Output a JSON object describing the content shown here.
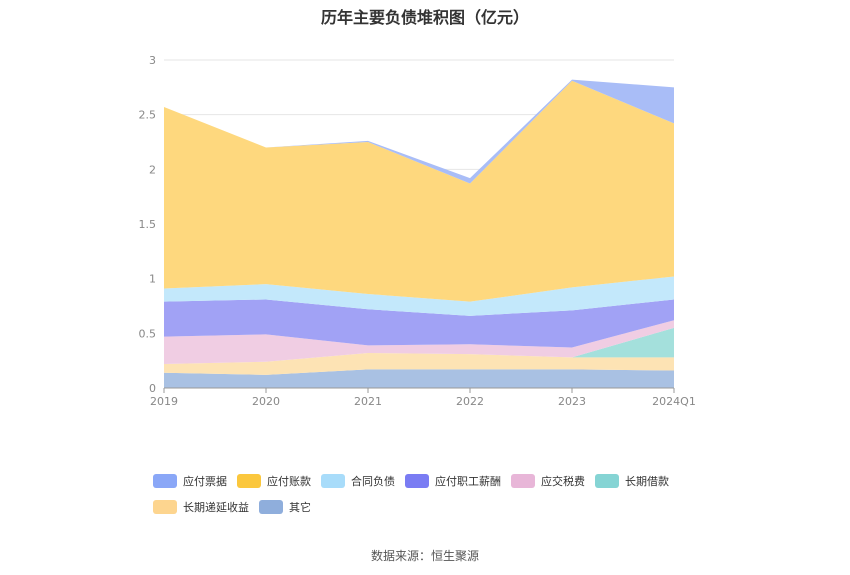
{
  "chart_data": {
    "type": "area",
    "stacked": true,
    "title": "历年主要负债堆积图（亿元）",
    "categories": [
      "2019",
      "2020",
      "2021",
      "2022",
      "2023",
      "2024Q1"
    ],
    "ylim": [
      0,
      3
    ],
    "yticks": [
      "0",
      "0.5",
      "1",
      "1.5",
      "2",
      "2.5",
      "3"
    ],
    "grid": true,
    "legend_position": "bottom",
    "series": [
      {
        "name": "其它",
        "color": "#a9c1e3",
        "values": [
          0.14,
          0.12,
          0.17,
          0.17,
          0.17,
          0.16
        ]
      },
      {
        "name": "长期递延收益",
        "color": "#fde3b4",
        "values": [
          0.08,
          0.12,
          0.15,
          0.14,
          0.11,
          0.12
        ]
      },
      {
        "name": "长期借款",
        "color": "#a4e0dc",
        "values": [
          0,
          0,
          0,
          0,
          0,
          0.27
        ]
      },
      {
        "name": "应交税费",
        "color": "#f0cde3",
        "values": [
          0.25,
          0.25,
          0.07,
          0.09,
          0.09,
          0.07
        ]
      },
      {
        "name": "应付职工薪酬",
        "color": "#a1a2f5",
        "values": [
          0.32,
          0.32,
          0.33,
          0.26,
          0.34,
          0.19
        ]
      },
      {
        "name": "合同负债",
        "color": "#c3e8fb",
        "values": [
          0.12,
          0.14,
          0.14,
          0.13,
          0.21,
          0.21
        ]
      },
      {
        "name": "应付账款",
        "color": "#fed87e",
        "values": [
          1.66,
          1.25,
          1.39,
          1.08,
          1.89,
          1.4
        ]
      },
      {
        "name": "应付票据",
        "color": "#a9bdf7",
        "values": [
          0,
          0,
          0.01,
          0.05,
          0.01,
          0.33
        ]
      }
    ]
  },
  "legend": [
    {
      "name": "应付票据",
      "color": "#8aa7f7"
    },
    {
      "name": "应付账款",
      "color": "#fbc73d"
    },
    {
      "name": "合同负债",
      "color": "#a8dcfa"
    },
    {
      "name": "应付职工薪酬",
      "color": "#7a7cf3"
    },
    {
      "name": "应交税费",
      "color": "#e8b6d8"
    },
    {
      "name": "长期借款",
      "color": "#85d4d4"
    },
    {
      "name": "长期递延收益",
      "color": "#fdd58f"
    },
    {
      "name": "其它",
      "color": "#8faedc"
    }
  ],
  "source": "数据来源：恒生聚源"
}
